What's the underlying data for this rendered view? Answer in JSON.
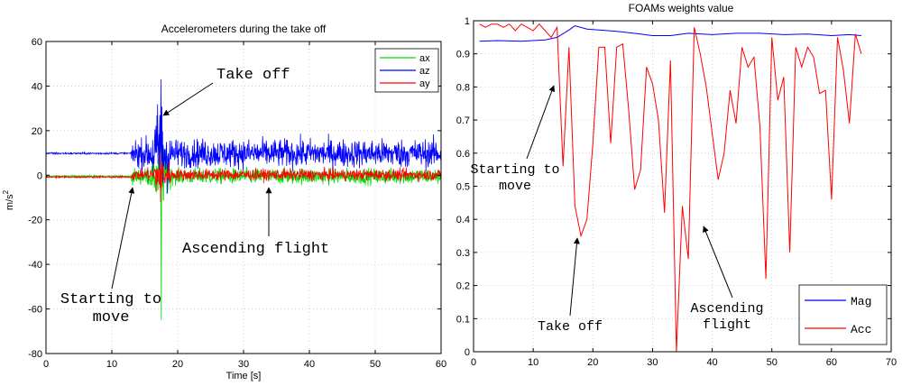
{
  "chart_data": [
    {
      "type": "line",
      "title": "Accelerometers during the take off",
      "xlabel": "Time [s]",
      "ylabel": "m/s",
      "ylabel_superscript": "2",
      "xlim": [
        0,
        60
      ],
      "ylim": [
        -80,
        60
      ],
      "xticks": [
        0,
        10,
        20,
        30,
        40,
        50,
        60
      ],
      "yticks": [
        -80,
        -60,
        -40,
        -20,
        0,
        20,
        40,
        60
      ],
      "grid": true,
      "legend_position": "top-right",
      "series": [
        {
          "name": "ax",
          "color": "#00dd00",
          "baseline": -0.5,
          "pre_noise": 0.3,
          "post_level": -0.5,
          "post_noise": 2.5
        },
        {
          "name": "az",
          "color": "#0000ff",
          "baseline": 9.8,
          "pre_noise": 0.3,
          "post_level": 9.8,
          "post_noise": 4.5
        },
        {
          "name": "ay",
          "color": "#ff0000",
          "baseline": -0.8,
          "pre_noise": 0.3,
          "post_level": 0.2,
          "post_noise": 1.8
        }
      ],
      "events": [
        {
          "label": "Starting to move",
          "t": 13
        },
        {
          "label": "Take off",
          "t": 17.5
        },
        {
          "label": "Ascending flight",
          "t": 35
        }
      ],
      "peaks": {
        "ax_max": 27,
        "ax_min": -65,
        "az_max": 43,
        "az_min": 2
      },
      "annotations": [
        {
          "id": "takeoff",
          "lines": [
            "Take off"
          ]
        },
        {
          "id": "ascending",
          "lines": [
            "Ascending flight"
          ]
        },
        {
          "id": "starting",
          "lines": [
            "Starting to",
            "move"
          ]
        }
      ]
    },
    {
      "type": "line",
      "title": "FOAMs weights value",
      "xlabel": "",
      "ylabel": "",
      "xlim": [
        0,
        70
      ],
      "ylim": [
        0,
        1
      ],
      "xticks": [
        0,
        10,
        20,
        30,
        40,
        50,
        60,
        70
      ],
      "yticks": [
        0,
        0.1,
        0.2,
        0.3,
        0.4,
        0.5,
        0.6,
        0.7,
        0.8,
        0.9,
        1
      ],
      "grid": true,
      "legend_position": "bottom-right",
      "series": [
        {
          "name": "Mag",
          "color": "#0000ff",
          "x": [
            1,
            4,
            8,
            12,
            14,
            16,
            17,
            19,
            21,
            24,
            28,
            30,
            33,
            36,
            40,
            44,
            48,
            52,
            56,
            60,
            63,
            65
          ],
          "y": [
            0.938,
            0.94,
            0.938,
            0.942,
            0.95,
            0.972,
            0.985,
            0.975,
            0.972,
            0.968,
            0.96,
            0.955,
            0.955,
            0.962,
            0.958,
            0.962,
            0.962,
            0.958,
            0.96,
            0.955,
            0.958,
            0.955
          ]
        },
        {
          "name": "Acc",
          "color": "#ff0000",
          "x": [
            1,
            2,
            3,
            4,
            5,
            6,
            7,
            8,
            9,
            10,
            11,
            12,
            13,
            14,
            15,
            16,
            17,
            18,
            19,
            20,
            21,
            22,
            23,
            24,
            25,
            26,
            27,
            28,
            29,
            30,
            31,
            32,
            33,
            34,
            35,
            36,
            37,
            38,
            39,
            40,
            41,
            42,
            43,
            44,
            45,
            46,
            47,
            48,
            49,
            50,
            51,
            52,
            53,
            54,
            55,
            56,
            57,
            58,
            59,
            60,
            61,
            62,
            63,
            64,
            65
          ],
          "y": [
            0.99,
            0.98,
            0.99,
            0.99,
            0.98,
            0.99,
            0.97,
            0.99,
            0.98,
            0.97,
            0.99,
            0.97,
            0.95,
            0.98,
            0.56,
            0.92,
            0.44,
            0.35,
            0.4,
            0.63,
            0.92,
            0.92,
            0.63,
            0.92,
            0.93,
            0.73,
            0.49,
            0.55,
            0.86,
            0.81,
            0.7,
            0.42,
            0.88,
            0.0,
            0.44,
            0.28,
            0.98,
            0.9,
            0.8,
            0.66,
            0.52,
            0.6,
            0.79,
            0.69,
            0.92,
            0.86,
            0.89,
            0.68,
            0.22,
            0.95,
            0.76,
            0.83,
            0.3,
            0.92,
            0.86,
            0.92,
            0.89,
            0.78,
            0.79,
            0.46,
            0.95,
            0.85,
            0.69,
            0.96,
            0.9
          ]
        }
      ],
      "annotations": [
        {
          "id": "starting",
          "lines": [
            "Starting to",
            "move"
          ]
        },
        {
          "id": "takeoff",
          "lines": [
            "Take off"
          ]
        },
        {
          "id": "ascending",
          "lines": [
            "Ascending",
            "flight"
          ]
        }
      ]
    }
  ]
}
